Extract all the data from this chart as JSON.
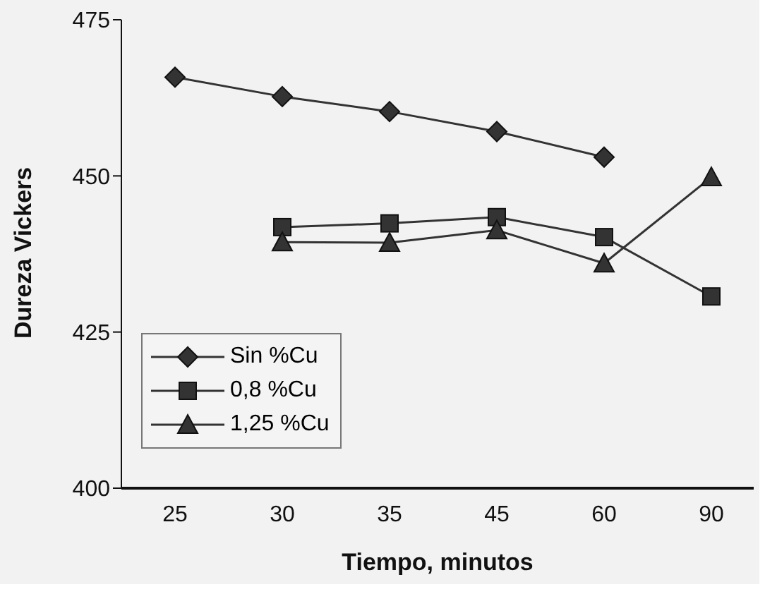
{
  "chart_data": {
    "type": "line",
    "xlabel": "Tiempo, minutos",
    "ylabel": "Dureza Vickers",
    "categories": [
      "25",
      "30",
      "35",
      "45",
      "60",
      "90"
    ],
    "series": [
      {
        "name": "Sin %Cu",
        "color": "#333333",
        "marker": "diamond",
        "values": [
          465.8,
          462.7,
          460.3,
          457.1,
          453,
          null
        ]
      },
      {
        "name": "0,8 %Cu",
        "color": "#333333",
        "marker": "square",
        "values": [
          null,
          441.8,
          442.4,
          443.4,
          440.2,
          430.7
        ]
      },
      {
        "name": "1,25 %Cu",
        "color": "#333333",
        "marker": "triangle",
        "values": [
          null,
          439.4,
          439.3,
          441.3,
          436,
          449.8
        ]
      }
    ],
    "ylim": [
      400,
      475
    ],
    "yticks": [
      400,
      425,
      450,
      475
    ],
    "grid": false,
    "legend": "bottom left"
  }
}
